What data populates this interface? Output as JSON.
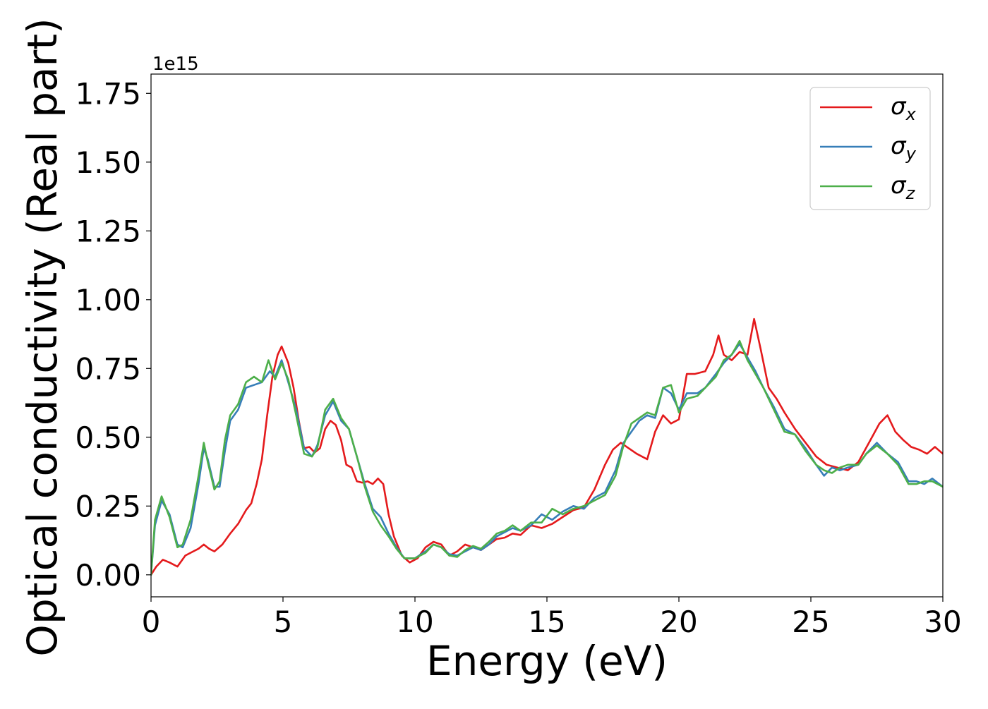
{
  "chart_data": {
    "type": "line",
    "xlabel": "Energy (eV)",
    "ylabel": "Optical conductivity (Real part)",
    "y_offset_label": "1e15",
    "xlim": [
      0,
      30
    ],
    "ylim": [
      -0.08,
      1.82
    ],
    "x_ticks": [
      0,
      5,
      10,
      15,
      20,
      25,
      30
    ],
    "x_tick_labels": [
      "0",
      "5",
      "10",
      "15",
      "20",
      "25",
      "30"
    ],
    "y_ticks": [
      0.0,
      0.25,
      0.5,
      0.75,
      1.0,
      1.25,
      1.5,
      1.75
    ],
    "y_tick_labels": [
      "0.00",
      "0.25",
      "0.50",
      "0.75",
      "1.00",
      "1.25",
      "1.50",
      "1.75"
    ],
    "grid": false,
    "legend_position": "top-right",
    "series": [
      {
        "name": "σx",
        "legend_symbol": "σ",
        "legend_subscript": "x",
        "color": "#e41a1c",
        "points": [
          [
            0,
            0.0
          ],
          [
            0.2,
            0.03
          ],
          [
            0.45,
            0.055
          ],
          [
            0.7,
            0.045
          ],
          [
            1.0,
            0.03
          ],
          [
            1.3,
            0.07
          ],
          [
            1.6,
            0.085
          ],
          [
            1.8,
            0.095
          ],
          [
            2.0,
            0.11
          ],
          [
            2.2,
            0.095
          ],
          [
            2.4,
            0.085
          ],
          [
            2.7,
            0.11
          ],
          [
            3.0,
            0.15
          ],
          [
            3.3,
            0.185
          ],
          [
            3.6,
            0.235
          ],
          [
            3.8,
            0.26
          ],
          [
            4.0,
            0.33
          ],
          [
            4.2,
            0.42
          ],
          [
            4.4,
            0.58
          ],
          [
            4.6,
            0.72
          ],
          [
            4.8,
            0.8
          ],
          [
            4.95,
            0.83
          ],
          [
            5.2,
            0.77
          ],
          [
            5.4,
            0.68
          ],
          [
            5.6,
            0.56
          ],
          [
            5.8,
            0.46
          ],
          [
            6.0,
            0.465
          ],
          [
            6.2,
            0.445
          ],
          [
            6.4,
            0.46
          ],
          [
            6.6,
            0.53
          ],
          [
            6.8,
            0.56
          ],
          [
            7.0,
            0.545
          ],
          [
            7.2,
            0.49
          ],
          [
            7.4,
            0.4
          ],
          [
            7.6,
            0.39
          ],
          [
            7.8,
            0.34
          ],
          [
            8.0,
            0.335
          ],
          [
            8.2,
            0.34
          ],
          [
            8.4,
            0.33
          ],
          [
            8.6,
            0.35
          ],
          [
            8.8,
            0.33
          ],
          [
            9.0,
            0.22
          ],
          [
            9.2,
            0.14
          ],
          [
            9.5,
            0.07
          ],
          [
            9.8,
            0.045
          ],
          [
            10.1,
            0.06
          ],
          [
            10.4,
            0.1
          ],
          [
            10.7,
            0.12
          ],
          [
            11.0,
            0.11
          ],
          [
            11.3,
            0.07
          ],
          [
            11.6,
            0.085
          ],
          [
            11.9,
            0.11
          ],
          [
            12.2,
            0.1
          ],
          [
            12.5,
            0.09
          ],
          [
            12.8,
            0.11
          ],
          [
            13.1,
            0.13
          ],
          [
            13.4,
            0.135
          ],
          [
            13.7,
            0.15
          ],
          [
            14.0,
            0.145
          ],
          [
            14.4,
            0.18
          ],
          [
            14.8,
            0.17
          ],
          [
            15.2,
            0.185
          ],
          [
            15.6,
            0.21
          ],
          [
            16.0,
            0.235
          ],
          [
            16.4,
            0.245
          ],
          [
            16.8,
            0.31
          ],
          [
            17.2,
            0.4
          ],
          [
            17.5,
            0.455
          ],
          [
            17.8,
            0.48
          ],
          [
            18.1,
            0.46
          ],
          [
            18.4,
            0.44
          ],
          [
            18.8,
            0.42
          ],
          [
            19.1,
            0.52
          ],
          [
            19.4,
            0.58
          ],
          [
            19.7,
            0.55
          ],
          [
            20.0,
            0.565
          ],
          [
            20.3,
            0.73
          ],
          [
            20.6,
            0.73
          ],
          [
            21.0,
            0.74
          ],
          [
            21.3,
            0.8
          ],
          [
            21.5,
            0.87
          ],
          [
            21.7,
            0.8
          ],
          [
            22.0,
            0.78
          ],
          [
            22.3,
            0.81
          ],
          [
            22.6,
            0.8
          ],
          [
            22.85,
            0.93
          ],
          [
            23.1,
            0.82
          ],
          [
            23.4,
            0.68
          ],
          [
            23.7,
            0.64
          ],
          [
            24.0,
            0.59
          ],
          [
            24.4,
            0.53
          ],
          [
            24.8,
            0.48
          ],
          [
            25.2,
            0.43
          ],
          [
            25.6,
            0.4
          ],
          [
            26.0,
            0.39
          ],
          [
            26.4,
            0.38
          ],
          [
            26.8,
            0.41
          ],
          [
            27.2,
            0.48
          ],
          [
            27.6,
            0.55
          ],
          [
            27.9,
            0.58
          ],
          [
            28.2,
            0.52
          ],
          [
            28.5,
            0.49
          ],
          [
            28.8,
            0.465
          ],
          [
            29.1,
            0.455
          ],
          [
            29.4,
            0.44
          ],
          [
            29.7,
            0.465
          ],
          [
            30.0,
            0.44
          ]
        ]
      },
      {
        "name": "σy",
        "legend_symbol": "σ",
        "legend_subscript": "y",
        "color": "#377eb8",
        "points": [
          [
            0,
            0.0
          ],
          [
            0.15,
            0.18
          ],
          [
            0.4,
            0.27
          ],
          [
            0.7,
            0.22
          ],
          [
            1.0,
            0.11
          ],
          [
            1.2,
            0.1
          ],
          [
            1.5,
            0.17
          ],
          [
            1.8,
            0.33
          ],
          [
            2.0,
            0.46
          ],
          [
            2.15,
            0.42
          ],
          [
            2.4,
            0.32
          ],
          [
            2.6,
            0.32
          ],
          [
            2.8,
            0.45
          ],
          [
            3.0,
            0.56
          ],
          [
            3.3,
            0.6
          ],
          [
            3.6,
            0.68
          ],
          [
            3.9,
            0.69
          ],
          [
            4.2,
            0.7
          ],
          [
            4.5,
            0.74
          ],
          [
            4.7,
            0.72
          ],
          [
            4.95,
            0.78
          ],
          [
            5.2,
            0.7
          ],
          [
            5.5,
            0.6
          ],
          [
            5.8,
            0.46
          ],
          [
            6.1,
            0.43
          ],
          [
            6.3,
            0.47
          ],
          [
            6.6,
            0.58
          ],
          [
            6.9,
            0.63
          ],
          [
            7.2,
            0.56
          ],
          [
            7.5,
            0.53
          ],
          [
            7.8,
            0.43
          ],
          [
            8.1,
            0.33
          ],
          [
            8.4,
            0.24
          ],
          [
            8.7,
            0.21
          ],
          [
            9.0,
            0.15
          ],
          [
            9.3,
            0.1
          ],
          [
            9.6,
            0.06
          ],
          [
            10.0,
            0.06
          ],
          [
            10.4,
            0.085
          ],
          [
            10.7,
            0.11
          ],
          [
            11.0,
            0.1
          ],
          [
            11.3,
            0.075
          ],
          [
            11.6,
            0.07
          ],
          [
            11.9,
            0.085
          ],
          [
            12.2,
            0.1
          ],
          [
            12.5,
            0.09
          ],
          [
            12.8,
            0.11
          ],
          [
            13.1,
            0.14
          ],
          [
            13.4,
            0.155
          ],
          [
            13.7,
            0.17
          ],
          [
            14.0,
            0.16
          ],
          [
            14.4,
            0.18
          ],
          [
            14.8,
            0.22
          ],
          [
            15.2,
            0.2
          ],
          [
            15.6,
            0.23
          ],
          [
            16.0,
            0.25
          ],
          [
            16.4,
            0.24
          ],
          [
            16.8,
            0.28
          ],
          [
            17.2,
            0.3
          ],
          [
            17.6,
            0.38
          ],
          [
            17.9,
            0.48
          ],
          [
            18.2,
            0.52
          ],
          [
            18.5,
            0.56
          ],
          [
            18.8,
            0.58
          ],
          [
            19.1,
            0.57
          ],
          [
            19.4,
            0.68
          ],
          [
            19.7,
            0.66
          ],
          [
            20.0,
            0.6
          ],
          [
            20.3,
            0.66
          ],
          [
            20.7,
            0.66
          ],
          [
            21.0,
            0.68
          ],
          [
            21.4,
            0.73
          ],
          [
            21.7,
            0.77
          ],
          [
            22.0,
            0.8
          ],
          [
            22.3,
            0.84
          ],
          [
            22.6,
            0.79
          ],
          [
            22.9,
            0.74
          ],
          [
            23.2,
            0.68
          ],
          [
            23.6,
            0.61
          ],
          [
            24.0,
            0.53
          ],
          [
            24.4,
            0.51
          ],
          [
            24.8,
            0.46
          ],
          [
            25.2,
            0.4
          ],
          [
            25.5,
            0.36
          ],
          [
            25.8,
            0.39
          ],
          [
            26.1,
            0.38
          ],
          [
            26.4,
            0.39
          ],
          [
            26.8,
            0.4
          ],
          [
            27.1,
            0.44
          ],
          [
            27.5,
            0.48
          ],
          [
            27.9,
            0.44
          ],
          [
            28.3,
            0.41
          ],
          [
            28.7,
            0.34
          ],
          [
            29.0,
            0.34
          ],
          [
            29.3,
            0.33
          ],
          [
            29.6,
            0.35
          ],
          [
            30.0,
            0.32
          ]
        ]
      },
      {
        "name": "σz",
        "legend_symbol": "σ",
        "legend_subscript": "z",
        "color": "#4daf4a",
        "points": [
          [
            0,
            0.0
          ],
          [
            0.15,
            0.2
          ],
          [
            0.4,
            0.285
          ],
          [
            0.7,
            0.21
          ],
          [
            1.0,
            0.1
          ],
          [
            1.2,
            0.11
          ],
          [
            1.5,
            0.2
          ],
          [
            1.8,
            0.36
          ],
          [
            2.0,
            0.48
          ],
          [
            2.15,
            0.41
          ],
          [
            2.4,
            0.31
          ],
          [
            2.6,
            0.34
          ],
          [
            2.8,
            0.49
          ],
          [
            3.0,
            0.58
          ],
          [
            3.3,
            0.62
          ],
          [
            3.6,
            0.7
          ],
          [
            3.9,
            0.72
          ],
          [
            4.2,
            0.7
          ],
          [
            4.45,
            0.78
          ],
          [
            4.7,
            0.71
          ],
          [
            4.95,
            0.77
          ],
          [
            5.2,
            0.71
          ],
          [
            5.5,
            0.58
          ],
          [
            5.8,
            0.44
          ],
          [
            6.1,
            0.43
          ],
          [
            6.3,
            0.46
          ],
          [
            6.6,
            0.6
          ],
          [
            6.9,
            0.64
          ],
          [
            7.2,
            0.57
          ],
          [
            7.5,
            0.53
          ],
          [
            7.8,
            0.43
          ],
          [
            8.1,
            0.32
          ],
          [
            8.4,
            0.23
          ],
          [
            8.7,
            0.18
          ],
          [
            9.0,
            0.14
          ],
          [
            9.3,
            0.095
          ],
          [
            9.6,
            0.06
          ],
          [
            10.0,
            0.06
          ],
          [
            10.4,
            0.08
          ],
          [
            10.7,
            0.11
          ],
          [
            11.0,
            0.1
          ],
          [
            11.3,
            0.07
          ],
          [
            11.6,
            0.065
          ],
          [
            11.9,
            0.09
          ],
          [
            12.2,
            0.105
          ],
          [
            12.5,
            0.095
          ],
          [
            12.8,
            0.12
          ],
          [
            13.1,
            0.15
          ],
          [
            13.4,
            0.16
          ],
          [
            13.7,
            0.18
          ],
          [
            14.0,
            0.16
          ],
          [
            14.4,
            0.19
          ],
          [
            14.8,
            0.19
          ],
          [
            15.2,
            0.24
          ],
          [
            15.6,
            0.22
          ],
          [
            16.0,
            0.24
          ],
          [
            16.4,
            0.25
          ],
          [
            16.8,
            0.27
          ],
          [
            17.2,
            0.29
          ],
          [
            17.6,
            0.36
          ],
          [
            17.9,
            0.47
          ],
          [
            18.2,
            0.55
          ],
          [
            18.5,
            0.57
          ],
          [
            18.8,
            0.59
          ],
          [
            19.1,
            0.58
          ],
          [
            19.4,
            0.68
          ],
          [
            19.7,
            0.69
          ],
          [
            20.0,
            0.59
          ],
          [
            20.3,
            0.64
          ],
          [
            20.7,
            0.65
          ],
          [
            21.0,
            0.68
          ],
          [
            21.4,
            0.72
          ],
          [
            21.7,
            0.78
          ],
          [
            22.0,
            0.8
          ],
          [
            22.3,
            0.85
          ],
          [
            22.6,
            0.78
          ],
          [
            22.9,
            0.73
          ],
          [
            23.2,
            0.68
          ],
          [
            23.6,
            0.6
          ],
          [
            24.0,
            0.52
          ],
          [
            24.4,
            0.51
          ],
          [
            24.8,
            0.45
          ],
          [
            25.2,
            0.4
          ],
          [
            25.5,
            0.38
          ],
          [
            25.8,
            0.37
          ],
          [
            26.1,
            0.39
          ],
          [
            26.4,
            0.4
          ],
          [
            26.8,
            0.4
          ],
          [
            27.1,
            0.44
          ],
          [
            27.5,
            0.47
          ],
          [
            27.9,
            0.44
          ],
          [
            28.3,
            0.4
          ],
          [
            28.7,
            0.33
          ],
          [
            29.0,
            0.33
          ],
          [
            29.3,
            0.34
          ],
          [
            29.6,
            0.34
          ],
          [
            30.0,
            0.32
          ]
        ]
      }
    ]
  }
}
